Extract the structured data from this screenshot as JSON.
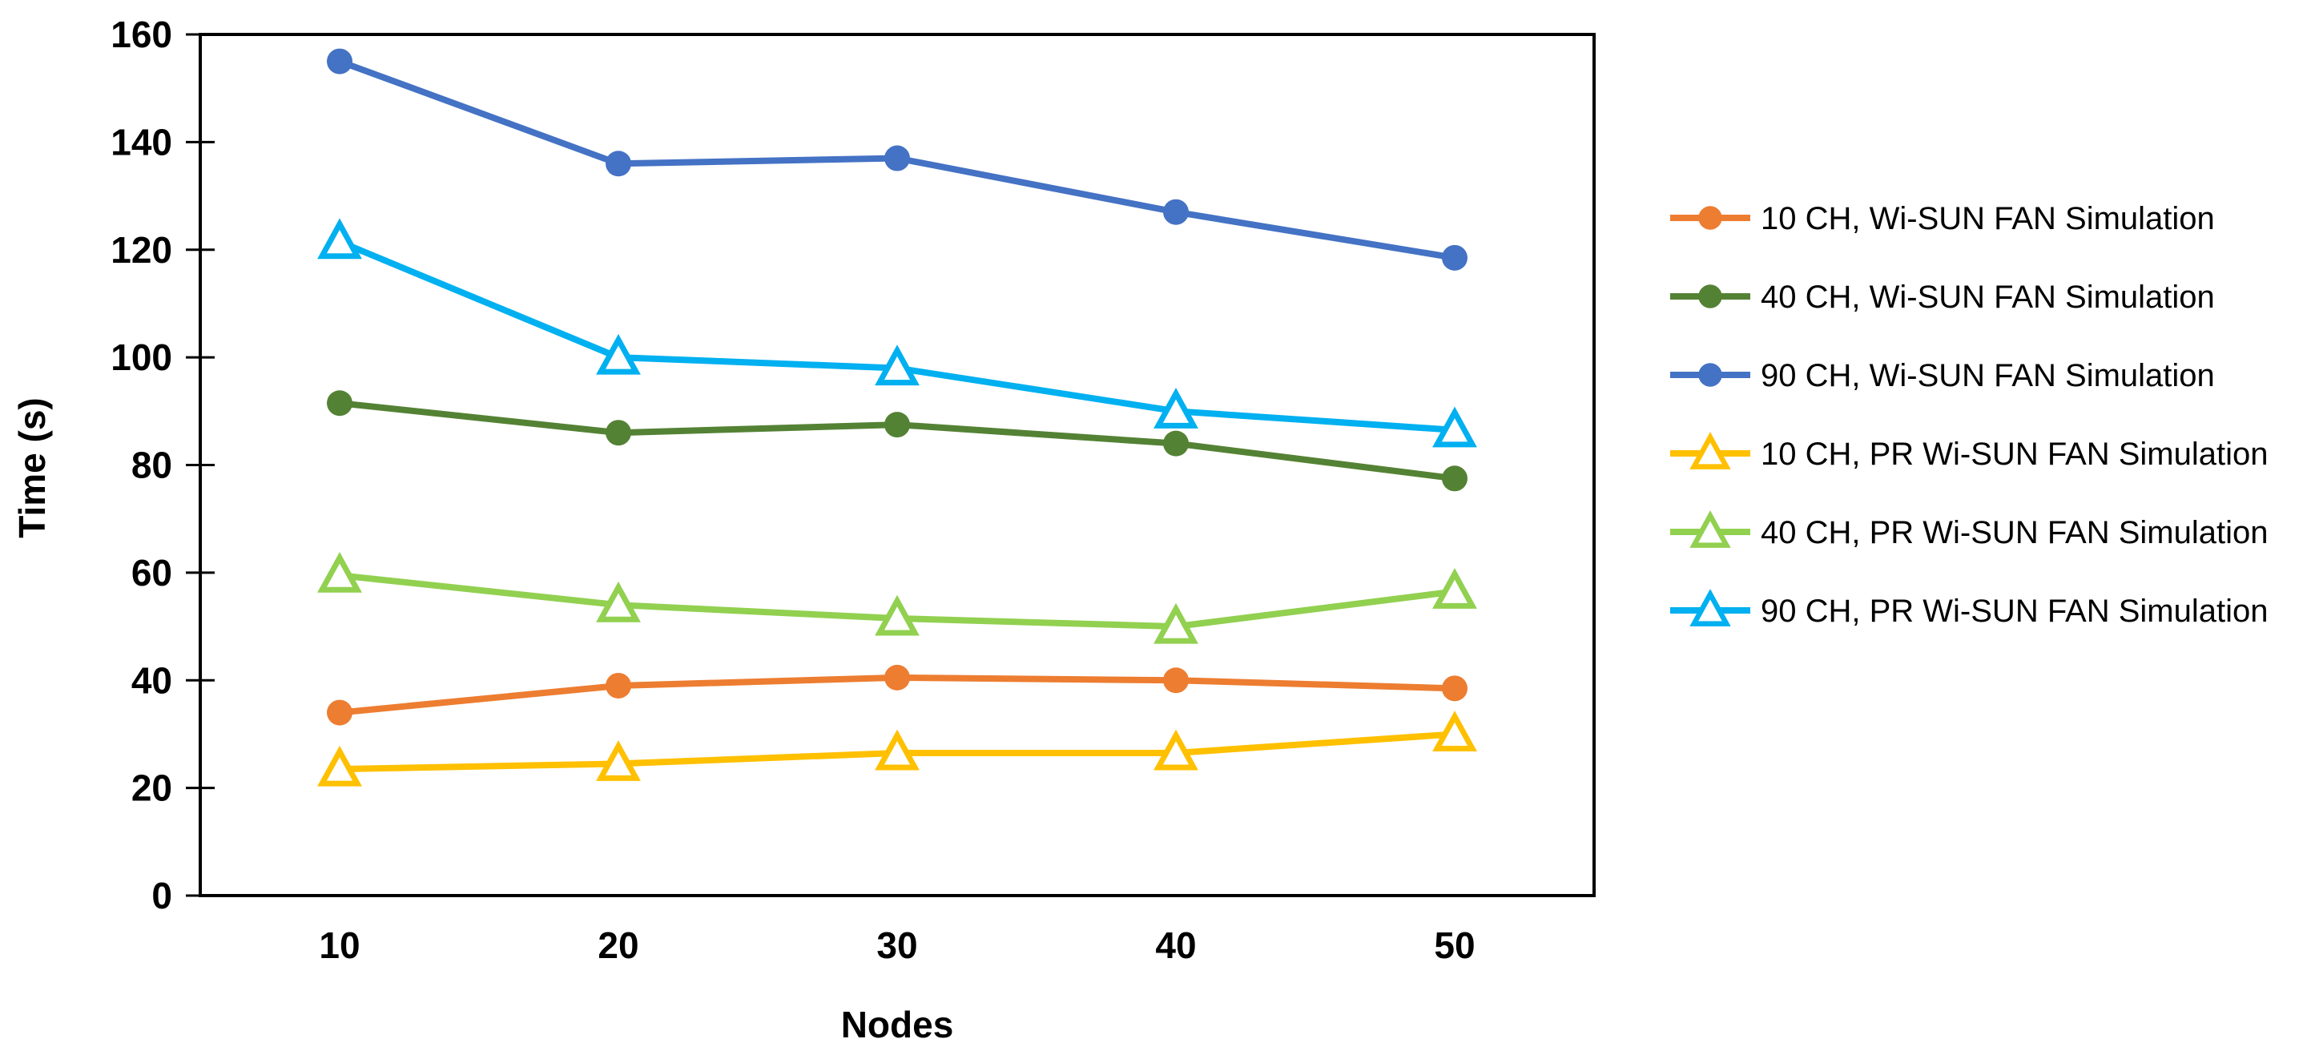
{
  "chart_data": {
    "type": "line",
    "title": "",
    "xlabel": "Nodes",
    "ylabel": "Time (s)",
    "x_categories": [
      "10",
      "20",
      "30",
      "40",
      "50"
    ],
    "y_ticks": [
      0,
      20,
      40,
      60,
      80,
      100,
      120,
      140,
      160
    ],
    "ylim": [
      0,
      160
    ],
    "grid": "off",
    "legend_position": "right",
    "axis_color": "#000000",
    "text_color": "#000000",
    "background_color": "#ffffff",
    "series": [
      {
        "name": "10 CH, Wi-SUN FAN Simulation",
        "color": "#ED7D31",
        "marker": "circle",
        "values": [
          34,
          39,
          40.5,
          40,
          38.5
        ]
      },
      {
        "name": "40 CH, Wi-SUN FAN Simulation",
        "color": "#548235",
        "marker": "circle",
        "values": [
          91.5,
          86,
          87.5,
          84,
          77.5
        ]
      },
      {
        "name": "90 CH, Wi-SUN FAN Simulation",
        "color": "#4472C4",
        "marker": "circle",
        "values": [
          155,
          136,
          137,
          127,
          118.5
        ]
      },
      {
        "name": "10 CH, PR Wi-SUN FAN Simulation",
        "color": "#FFC000",
        "marker": "triangle-open",
        "values": [
          23.5,
          24.5,
          26.5,
          26.5,
          30
        ]
      },
      {
        "name": "40 CH, PR Wi-SUN FAN Simulation",
        "color": "#92D050",
        "marker": "triangle-open",
        "values": [
          59.5,
          54,
          51.5,
          50,
          56.5
        ]
      },
      {
        "name": "90 CH, PR Wi-SUN FAN Simulation",
        "color": "#00B0F0",
        "marker": "triangle-open",
        "values": [
          121.5,
          100,
          98,
          90,
          86.5
        ]
      }
    ]
  }
}
